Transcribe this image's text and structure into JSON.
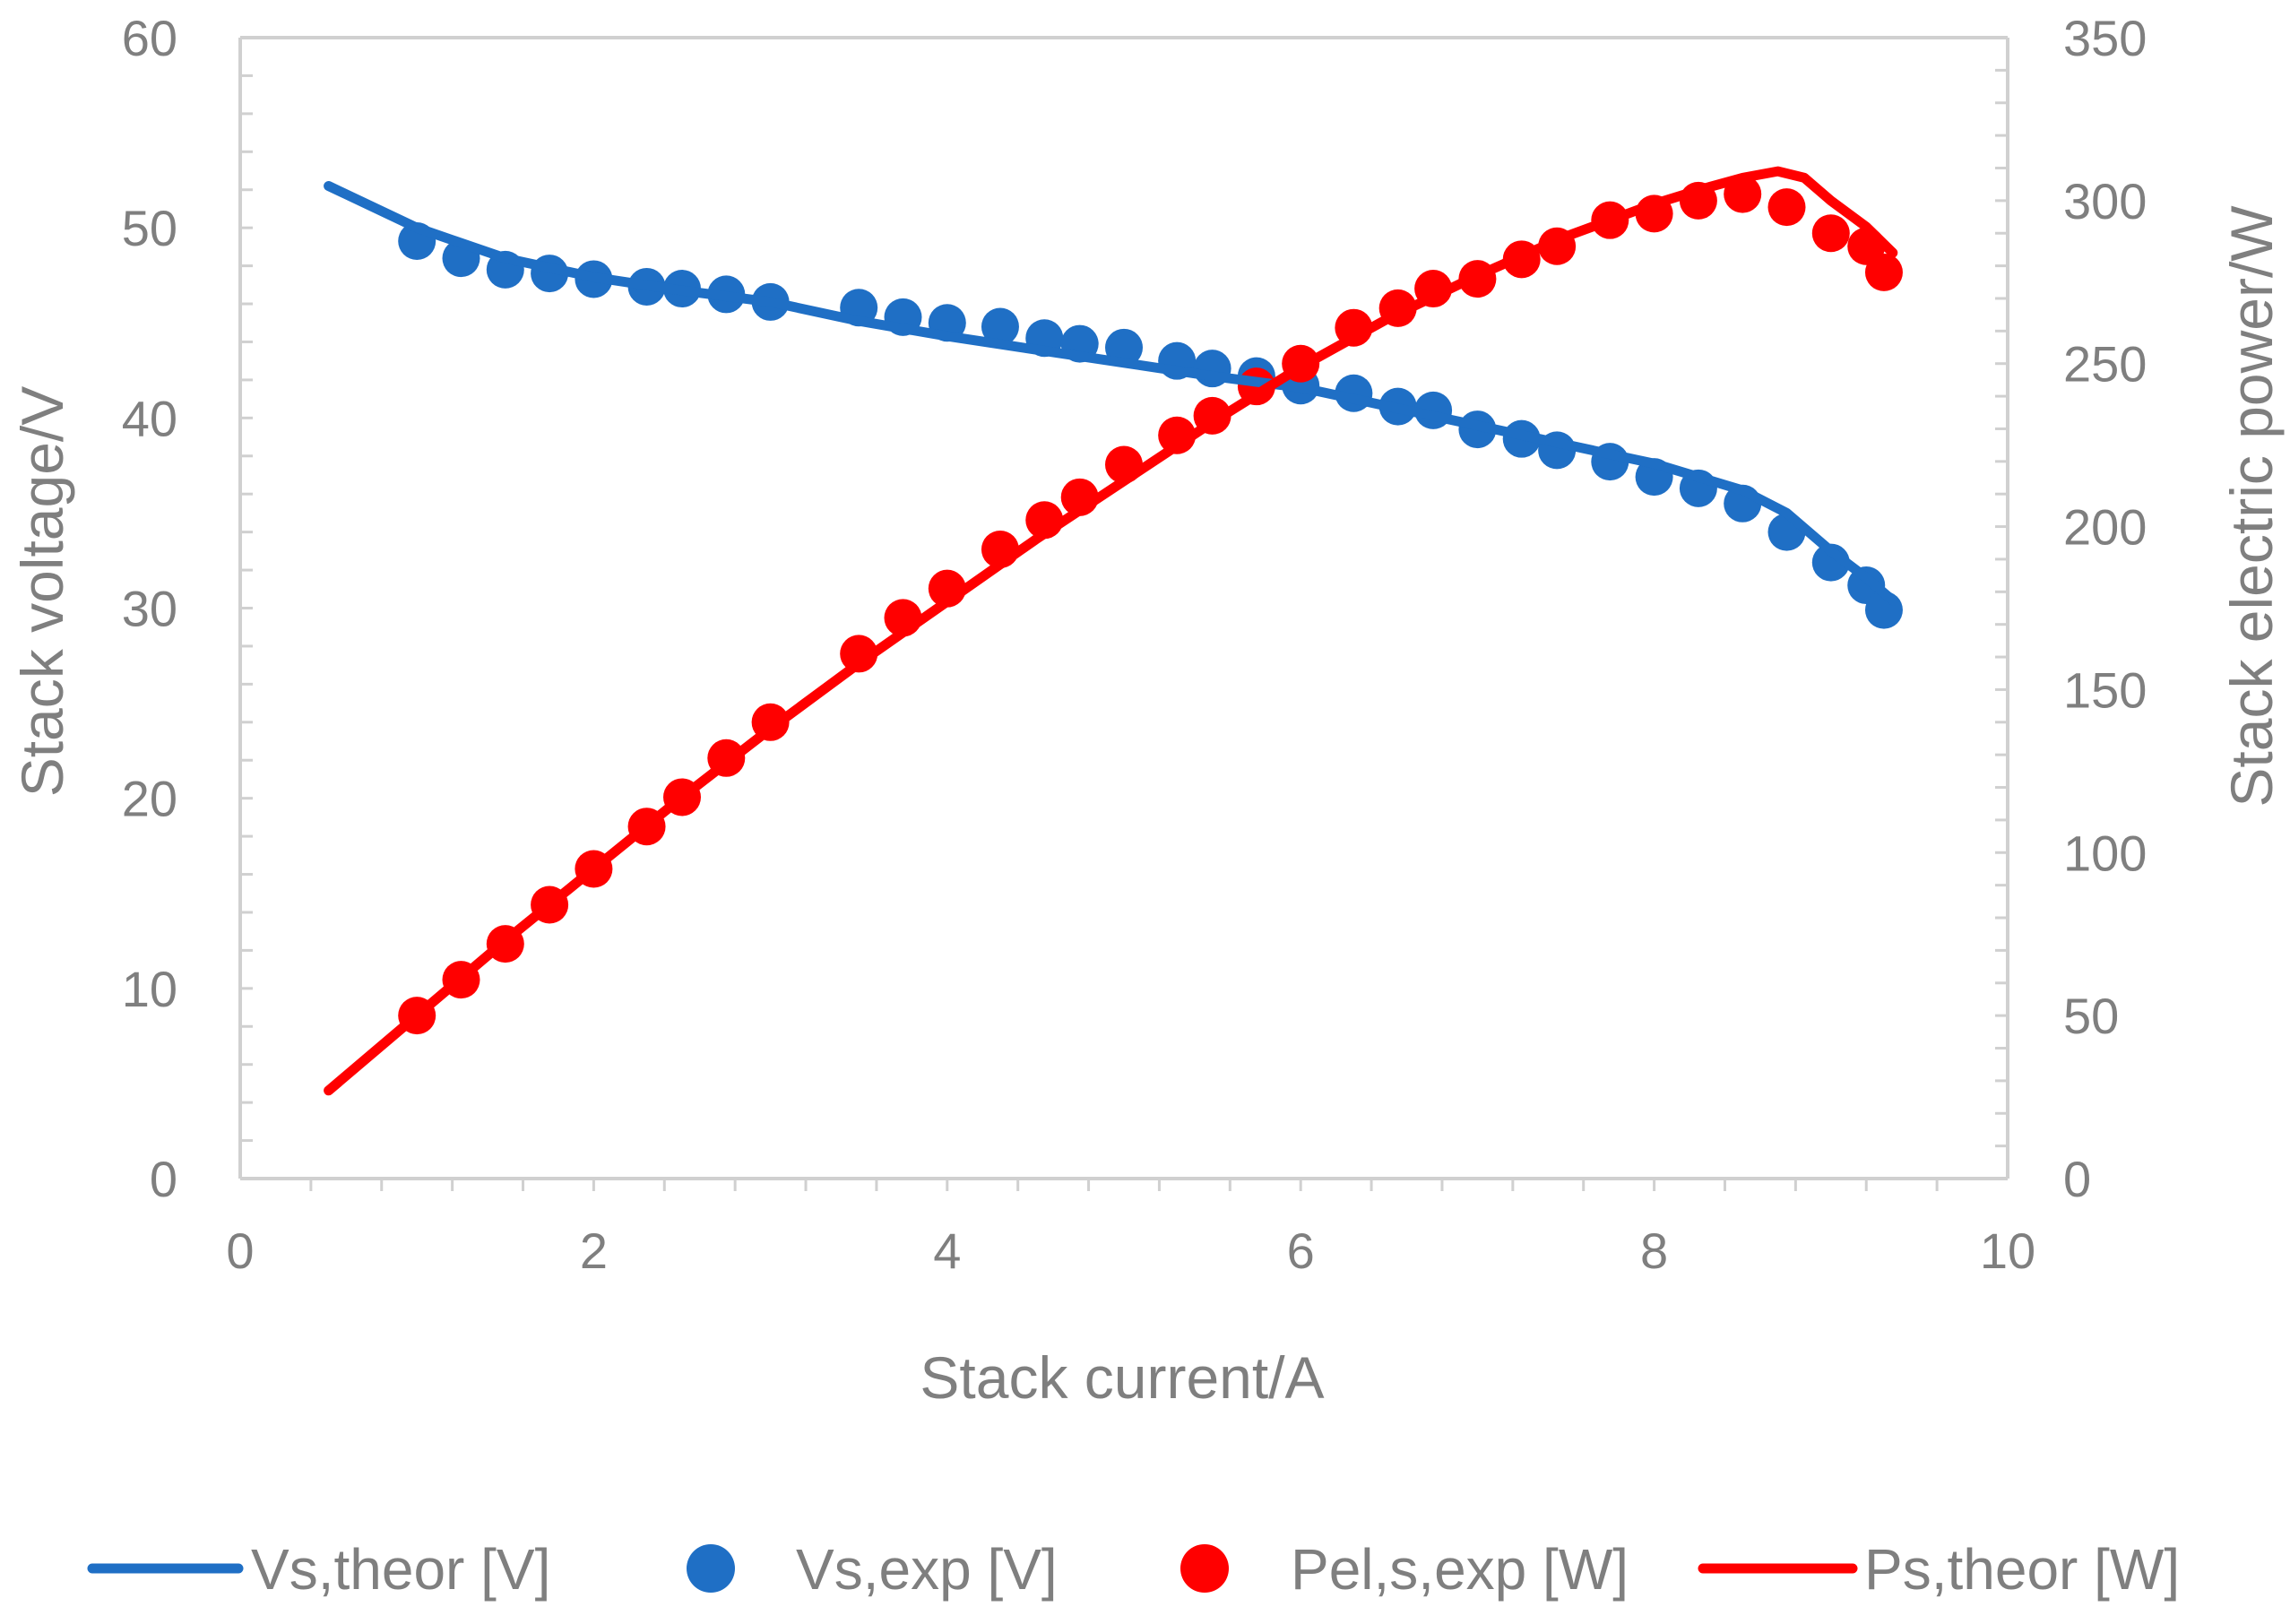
{
  "chart_data": {
    "type": "scatter",
    "x_axis": {
      "label": "Stack current/A",
      "range": [
        0,
        10
      ],
      "ticks": [
        0,
        2,
        4,
        6,
        8,
        10
      ],
      "minor_step": 0.4
    },
    "y_left": {
      "label": "Stack  voltage/V",
      "range": [
        0,
        60
      ],
      "ticks": [
        0,
        10,
        20,
        30,
        40,
        50,
        60
      ],
      "minor_step": 2
    },
    "y_right": {
      "label": "Stack electric power/W",
      "range": [
        0,
        350
      ],
      "ticks": [
        0,
        50,
        100,
        150,
        200,
        250,
        300,
        350
      ]
    },
    "grid": false,
    "legend_position": "bottom",
    "colors": {
      "blue": "#1f6fc5",
      "red": "#ff0000",
      "axis": "#d0d0d0",
      "text": "#7f7f7f"
    },
    "series": [
      {
        "name": "Vs,theor [V]",
        "kind": "line",
        "axis": "left",
        "color": "#1f6fc5",
        "x": [
          0.5,
          1.0,
          1.5,
          2.0,
          2.5,
          3.0,
          3.5,
          4.0,
          4.5,
          5.0,
          5.5,
          6.0,
          6.5,
          7.0,
          7.5,
          8.0,
          8.5,
          8.75,
          9.0,
          9.2,
          9.35
        ],
        "y": [
          52.2,
          50.0,
          48.4,
          47.4,
          46.7,
          46.1,
          45.1,
          44.3,
          43.6,
          42.9,
          42.2,
          41.6,
          40.6,
          39.6,
          38.6,
          37.6,
          36.2,
          35.0,
          33.0,
          31.6,
          30.4
        ]
      },
      {
        "name": "Vs,exp [V]",
        "kind": "scatter",
        "axis": "left",
        "color": "#1f6fc5",
        "x": [
          1.0,
          1.25,
          1.5,
          1.75,
          2.0,
          2.3,
          2.5,
          2.75,
          3.0,
          3.5,
          3.75,
          4.0,
          4.3,
          4.55,
          4.75,
          5.0,
          5.3,
          5.5,
          5.75,
          6.0,
          6.3,
          6.55,
          6.75,
          7.0,
          7.25,
          7.45,
          7.75,
          8.0,
          8.25,
          8.5,
          8.75,
          9.0,
          9.2,
          9.3
        ],
        "y": [
          49.3,
          48.4,
          47.8,
          47.6,
          47.3,
          46.9,
          46.8,
          46.5,
          46.1,
          45.8,
          45.3,
          45.0,
          44.8,
          44.2,
          43.9,
          43.7,
          43.0,
          42.6,
          42.2,
          41.7,
          41.3,
          40.6,
          40.4,
          39.4,
          38.9,
          38.3,
          37.7,
          36.9,
          36.3,
          35.5,
          34.0,
          32.4,
          31.2,
          29.9
        ]
      },
      {
        "name": "Pel,s,exp [W]",
        "kind": "scatter",
        "axis": "right",
        "color": "#ff0000",
        "x": [
          1.0,
          1.25,
          1.5,
          1.75,
          2.0,
          2.3,
          2.5,
          2.75,
          3.0,
          3.5,
          3.75,
          4.0,
          4.3,
          4.55,
          4.75,
          5.0,
          5.3,
          5.5,
          5.75,
          6.0,
          6.3,
          6.55,
          6.75,
          7.0,
          7.25,
          7.45,
          7.75,
          8.0,
          8.25,
          8.5,
          8.75,
          9.0,
          9.2,
          9.3
        ],
        "y": [
          50,
          61,
          72,
          84,
          95,
          108,
          117,
          129,
          140,
          161,
          172,
          181,
          193,
          202,
          209,
          219,
          228,
          234,
          243,
          250,
          261,
          267,
          273,
          276,
          282,
          286,
          294,
          296,
          300,
          302,
          298,
          290,
          286,
          278
        ]
      },
      {
        "name": "Ps,theor [W]",
        "kind": "line",
        "axis": "right",
        "color": "#ff0000",
        "x": [
          0.5,
          1.0,
          1.5,
          2.0,
          2.5,
          3.0,
          3.5,
          4.0,
          4.5,
          5.0,
          5.5,
          6.0,
          6.5,
          7.0,
          7.5,
          8.0,
          8.3,
          8.5,
          8.7,
          8.85,
          9.0,
          9.2,
          9.35
        ],
        "y": [
          27,
          50,
          73,
          95,
          117,
          138,
          158,
          177,
          196,
          214,
          232,
          249,
          264,
          277,
          289,
          299,
          304,
          307,
          309,
          307,
          300,
          292,
          284
        ]
      }
    ]
  }
}
